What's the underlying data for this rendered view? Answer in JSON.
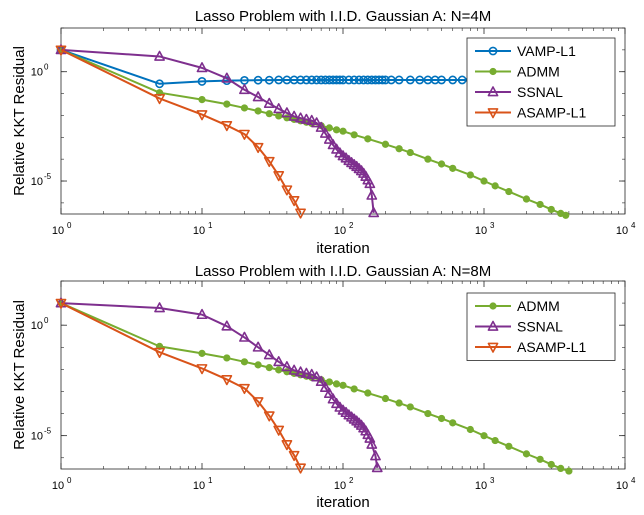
{
  "chart_data": [
    {
      "type": "line",
      "title": "Lasso Problem with I.I.D. Gaussian A: N=4M",
      "xlabel": "iteration",
      "ylabel": "Relative KKT Residual",
      "xscale": "log",
      "yscale": "log",
      "xlim": [
        1,
        10000
      ],
      "ylim": [
        3.1e-07,
        100
      ],
      "xticks": [
        1,
        10,
        100,
        1000,
        10000
      ],
      "yticks": [
        1e-05,
        1
      ],
      "legend": "top-right",
      "series": [
        {
          "name": "VAMP-L1",
          "color": "#0072BD",
          "marker": "circle",
          "x": [
            1,
            5,
            10,
            15,
            20,
            25,
            30,
            35,
            40,
            45,
            50,
            55,
            60,
            65,
            70,
            75,
            80,
            85,
            90,
            95,
            100,
            110,
            120,
            130,
            140,
            150,
            160,
            170,
            180,
            190,
            200,
            220,
            250,
            300,
            350,
            400,
            450,
            500,
            600,
            700,
            800,
            900,
            1000,
            1200,
            1500,
            2000,
            2500,
            3000,
            3500
          ],
          "y": [
            10,
            0.28,
            0.36,
            0.39,
            0.4,
            0.41,
            0.41,
            0.42,
            0.42,
            0.42,
            0.42,
            0.42,
            0.42,
            0.42,
            0.42,
            0.42,
            0.42,
            0.42,
            0.42,
            0.42,
            0.42,
            0.42,
            0.42,
            0.42,
            0.42,
            0.42,
            0.42,
            0.42,
            0.42,
            0.42,
            0.42,
            0.42,
            0.42,
            0.42,
            0.42,
            0.42,
            0.42,
            0.42,
            0.42,
            0.42,
            0.42,
            0.42,
            0.42,
            0.42,
            0.42,
            0.42,
            0.42,
            0.42,
            0.42
          ]
        },
        {
          "name": "ADMM",
          "color": "#77AC30",
          "marker": "dot",
          "x": [
            1,
            5,
            10,
            15,
            20,
            25,
            30,
            35,
            40,
            45,
            50,
            55,
            60,
            70,
            80,
            90,
            100,
            120,
            150,
            200,
            250,
            300,
            400,
            500,
            600,
            800,
            1000,
            1200,
            1500,
            2000,
            2500,
            3000,
            3500,
            3800
          ],
          "y": [
            10,
            0.11,
            0.053,
            0.033,
            0.022,
            0.016,
            0.012,
            0.0095,
            0.0078,
            0.0066,
            0.0057,
            0.0049,
            0.0043,
            0.0034,
            0.0027,
            0.0022,
            0.0019,
            0.0013,
            0.00085,
            0.00048,
            0.0003,
            0.0002,
            0.0001,
            6e-05,
            3.8e-05,
            1.9e-05,
            1e-05,
            6e-06,
            3.3e-06,
            1.5e-06,
            8.5e-07,
            5e-07,
            3.3e-07,
            2.7e-07
          ]
        },
        {
          "name": "SSNAL",
          "color": "#7E2F8E",
          "marker": "triangle-up",
          "x": [
            1,
            5,
            10,
            15,
            20,
            25,
            30,
            35,
            40,
            45,
            50,
            55,
            60,
            65,
            70,
            75,
            80,
            85,
            90,
            95,
            100,
            105,
            110,
            115,
            120,
            125,
            130,
            135,
            140,
            145,
            150,
            155,
            160,
            165
          ],
          "y": [
            10,
            5,
            1.5,
            0.5,
            0.15,
            0.07,
            0.035,
            0.02,
            0.013,
            0.009,
            0.0075,
            0.0065,
            0.0058,
            0.0045,
            0.0028,
            0.0015,
            0.0008,
            0.00045,
            0.00028,
            0.00019,
            0.00014,
            0.00011,
            8.5e-05,
            6.8e-05,
            5.5e-05,
            4.5e-05,
            3.6e-05,
            2.9e-05,
            2.2e-05,
            1.6e-05,
            1.1e-05,
            7.5e-06,
            2.2e-06,
            3.5e-07
          ]
        },
        {
          "name": "ASAMP-L1",
          "color": "#D95319",
          "marker": "triangle-down",
          "x": [
            1,
            5,
            10,
            15,
            20,
            25,
            30,
            35,
            40,
            45,
            50
          ],
          "y": [
            10,
            0.06,
            0.011,
            0.0035,
            0.0014,
            0.00035,
            8e-05,
            1.8e-05,
            4e-06,
            1.3e-06,
            3.5e-07
          ]
        }
      ]
    },
    {
      "type": "line",
      "title": "Lasso Problem with I.I.D. Gaussian A: N=8M",
      "xlabel": "iteration",
      "ylabel": "Relative KKT Residual",
      "xscale": "log",
      "yscale": "log",
      "xlim": [
        1,
        10000
      ],
      "ylim": [
        3.1e-07,
        100
      ],
      "xticks": [
        1,
        10,
        100,
        1000,
        10000
      ],
      "yticks": [
        1e-05,
        1
      ],
      "legend": "top-right",
      "series": [
        {
          "name": "ADMM",
          "color": "#77AC30",
          "marker": "dot",
          "x": [
            1,
            5,
            10,
            15,
            20,
            25,
            30,
            35,
            40,
            45,
            50,
            55,
            60,
            70,
            80,
            90,
            100,
            120,
            150,
            200,
            250,
            300,
            400,
            500,
            600,
            800,
            1000,
            1200,
            1500,
            2000,
            2500,
            3000,
            3500,
            4000
          ],
          "y": [
            10,
            0.11,
            0.053,
            0.033,
            0.022,
            0.016,
            0.012,
            0.0095,
            0.0078,
            0.0066,
            0.0057,
            0.0049,
            0.0043,
            0.0034,
            0.0027,
            0.0022,
            0.0019,
            0.0013,
            0.00085,
            0.00048,
            0.0003,
            0.0002,
            0.0001,
            6e-05,
            3.8e-05,
            1.9e-05,
            1e-05,
            6e-06,
            3.3e-06,
            1.5e-06,
            8.5e-07,
            5e-07,
            3.3e-07,
            2.5e-07
          ]
        },
        {
          "name": "SSNAL",
          "color": "#7E2F8E",
          "marker": "triangle-up",
          "x": [
            1,
            5,
            10,
            15,
            20,
            25,
            30,
            35,
            40,
            45,
            50,
            55,
            60,
            65,
            70,
            75,
            80,
            85,
            90,
            95,
            100,
            105,
            110,
            115,
            120,
            125,
            130,
            135,
            140,
            145,
            150,
            155,
            160,
            170,
            175
          ],
          "y": [
            10,
            6,
            3,
            0.9,
            0.28,
            0.1,
            0.045,
            0.022,
            0.013,
            0.009,
            0.0075,
            0.0065,
            0.0058,
            0.0045,
            0.0028,
            0.0015,
            0.0008,
            0.00045,
            0.00028,
            0.00019,
            0.00014,
            0.00011,
            8.5e-05,
            6.8e-05,
            5.5e-05,
            4.5e-05,
            3.6e-05,
            2.9e-05,
            2.2e-05,
            1.6e-05,
            1.1e-05,
            7.5e-06,
            4e-06,
            1.2e-06,
            3.5e-07
          ]
        },
        {
          "name": "ASAMP-L1",
          "color": "#D95319",
          "marker": "triangle-down",
          "x": [
            1,
            5,
            10,
            15,
            20,
            25,
            30,
            35,
            40,
            45,
            50
          ],
          "y": [
            10,
            0.06,
            0.011,
            0.0035,
            0.0014,
            0.00035,
            8e-05,
            1.8e-05,
            4e-06,
            1.3e-06,
            3.5e-07
          ]
        }
      ]
    }
  ]
}
